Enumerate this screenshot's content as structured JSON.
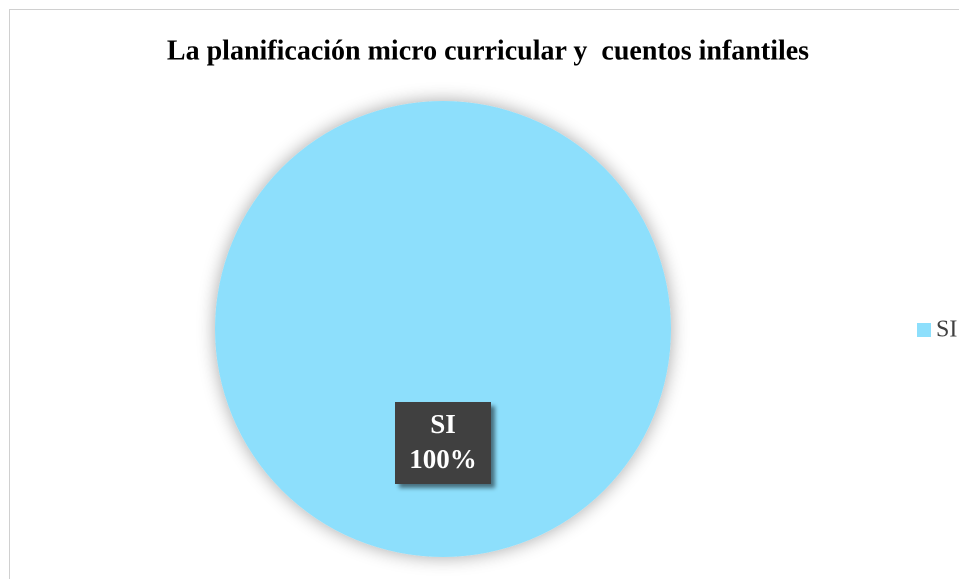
{
  "chart_data": {
    "type": "pie",
    "title": "La planificación micro curricular y  cuentos infantiles",
    "categories": [
      "SI"
    ],
    "values": [
      100
    ],
    "value_labels": [
      "100%"
    ],
    "colors": [
      "#8ddffc"
    ],
    "legend": "right"
  }
}
